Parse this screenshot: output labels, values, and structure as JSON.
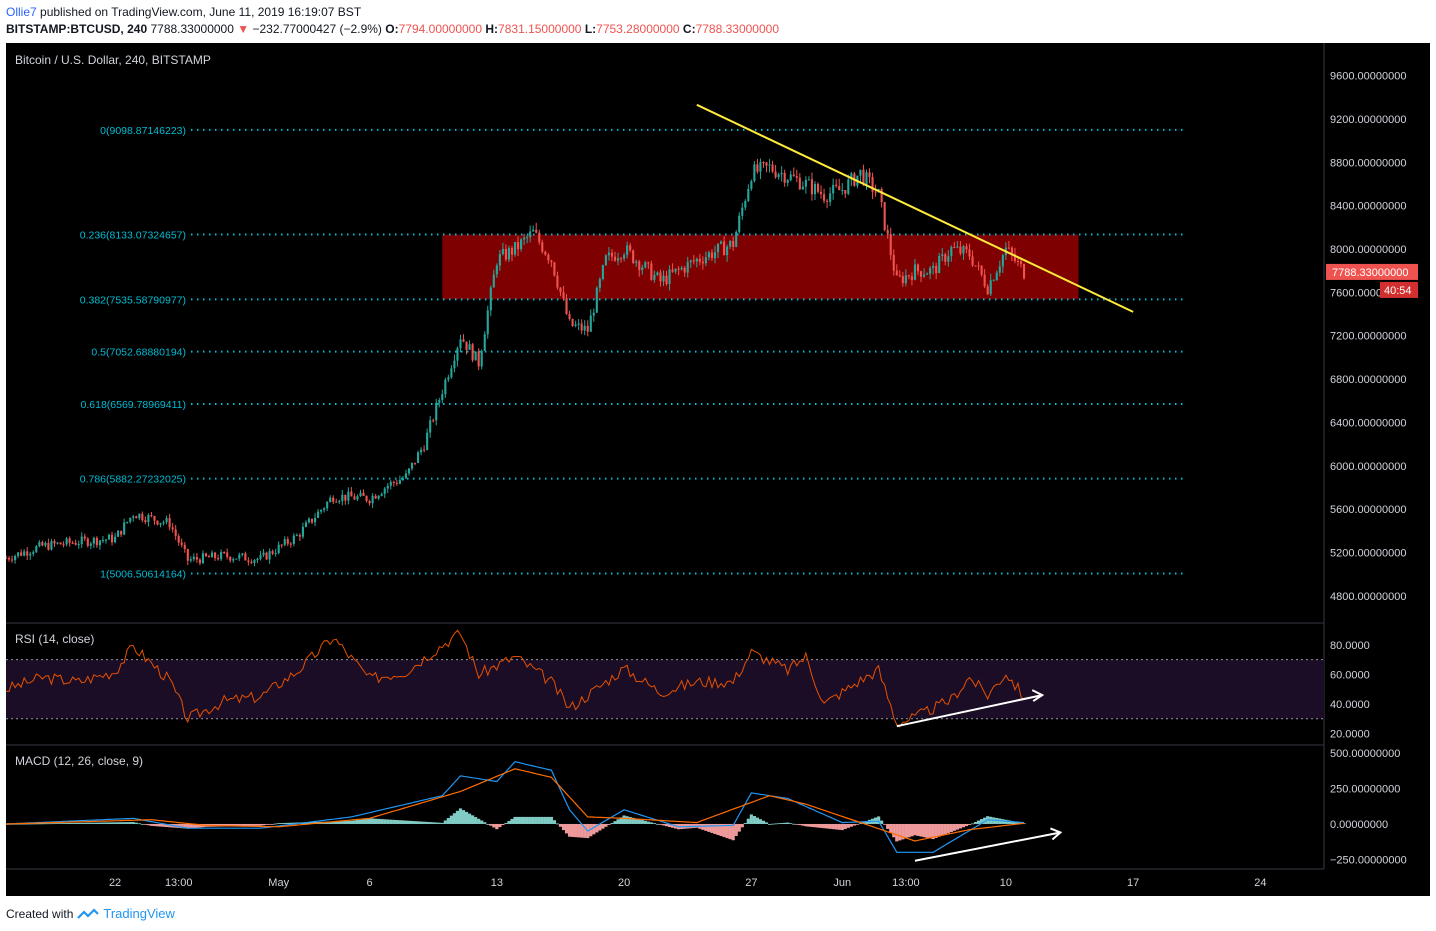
{
  "header": {
    "user": "Ollie7",
    "published": "published on TradingView.com, June 11, 2019 16:19:07 BST",
    "symbol": "BITSTAMP:BTCUSD, 240",
    "last": "7788.33000000",
    "change": "−232.77000427 (−2.9%)",
    "o_label": "O:",
    "o": "7794.00000000",
    "h_label": "H:",
    "h": "7831.15000000",
    "l_label": "L:",
    "l": "7753.28000000",
    "c_label": "C:",
    "c": "7788.33000000"
  },
  "footer": {
    "created": "Created with",
    "brand": "TradingView"
  },
  "colors": {
    "background": "#000000",
    "up": "#26a69a",
    "down": "#ef5350",
    "fib": "#00bcd4",
    "zone": "#7f0000",
    "trendline": "#ffeb3b",
    "rsi": "#e65100",
    "macd": "#2196f3",
    "signal": "#ff6d00",
    "text": "#d1d4dc"
  },
  "chart_data": [
    {
      "type": "candlestick",
      "title": "Bitcoin / U.S. Dollar, 240, BITSTAMP",
      "ylim": [
        4550,
        9900
      ],
      "yticks": [
        "9600.00000000",
        "9200.00000000",
        "8800.00000000",
        "8400.00000000",
        "8000.00000000",
        "7600.00000000",
        "7200.00000000",
        "6800.00000000",
        "6400.00000000",
        "6000.00000000",
        "5600.00000000",
        "5200.00000000",
        "4800.00000000"
      ],
      "xticks": [
        "22",
        "13:00",
        "May",
        "6",
        "13",
        "20",
        "27",
        "Jun",
        "13:00",
        "10",
        "17",
        "24"
      ],
      "last_price_label": "7788.33000000",
      "countdown": "40:54",
      "fib_levels": [
        {
          "label": "0(9098.87146223)",
          "value": 9098.87
        },
        {
          "label": "0.236(8133.07324657)",
          "value": 8133.07
        },
        {
          "label": "0.382(7535.58790977)",
          "value": 7535.59
        },
        {
          "label": "0.5(7052.68880194)",
          "value": 7052.69
        },
        {
          "label": "0.618(6569.78969411)",
          "value": 6569.79
        },
        {
          "label": "0.786(5882.27232025)",
          "value": 5882.27
        },
        {
          "label": "1(5006.50614164)",
          "value": 5006.51
        }
      ],
      "zone": {
        "from_date": "2019-05-10",
        "to_date": "2019-06-14",
        "low": 7535.59,
        "high": 8133.07
      },
      "trendline": [
        {
          "date": "2019-05-24",
          "value": 9330
        },
        {
          "date": "2019-06-17",
          "value": 7420
        }
      ],
      "close_path": [
        {
          "date": "2019-04-16",
          "value": 5150
        },
        {
          "date": "2019-04-18",
          "value": 5260
        },
        {
          "date": "2019-04-20",
          "value": 5300
        },
        {
          "date": "2019-04-22",
          "value": 5330
        },
        {
          "date": "2019-04-23",
          "value": 5560
        },
        {
          "date": "2019-04-25",
          "value": 5470
        },
        {
          "date": "2019-04-26",
          "value": 5130
        },
        {
          "date": "2019-04-28",
          "value": 5170
        },
        {
          "date": "2019-04-30",
          "value": 5140
        },
        {
          "date": "2019-05-02",
          "value": 5350
        },
        {
          "date": "2019-05-04",
          "value": 5720
        },
        {
          "date": "2019-05-06",
          "value": 5700
        },
        {
          "date": "2019-05-07",
          "value": 5820
        },
        {
          "date": "2019-05-08",
          "value": 5900
        },
        {
          "date": "2019-05-09",
          "value": 6200
        },
        {
          "date": "2019-05-10",
          "value": 6700
        },
        {
          "date": "2019-05-11",
          "value": 7200
        },
        {
          "date": "2019-05-12",
          "value": 6950
        },
        {
          "date": "2019-05-13",
          "value": 7900
        },
        {
          "date": "2019-05-14",
          "value": 8000
        },
        {
          "date": "2019-05-15",
          "value": 8150
        },
        {
          "date": "2019-05-16",
          "value": 7900
        },
        {
          "date": "2019-05-17",
          "value": 7300
        },
        {
          "date": "2019-05-18",
          "value": 7250
        },
        {
          "date": "2019-05-19",
          "value": 7900
        },
        {
          "date": "2019-05-20",
          "value": 8000
        },
        {
          "date": "2019-05-22",
          "value": 7700
        },
        {
          "date": "2019-05-24",
          "value": 7900
        },
        {
          "date": "2019-05-26",
          "value": 8050
        },
        {
          "date": "2019-05-27",
          "value": 8700
        },
        {
          "date": "2019-05-28",
          "value": 8750
        },
        {
          "date": "2019-05-30",
          "value": 8600
        },
        {
          "date": "2019-05-31",
          "value": 8500
        },
        {
          "date": "2019-06-01",
          "value": 8550
        },
        {
          "date": "2019-06-02",
          "value": 8700
        },
        {
          "date": "2019-06-03",
          "value": 8500
        },
        {
          "date": "2019-06-04",
          "value": 7700
        },
        {
          "date": "2019-06-05",
          "value": 7800
        },
        {
          "date": "2019-06-06",
          "value": 7800
        },
        {
          "date": "2019-06-07",
          "value": 8000
        },
        {
          "date": "2019-06-08",
          "value": 7950
        },
        {
          "date": "2019-06-09",
          "value": 7650
        },
        {
          "date": "2019-06-10",
          "value": 8000
        },
        {
          "date": "2019-06-11",
          "value": 7788
        }
      ]
    },
    {
      "type": "line",
      "title": "RSI (14, close)",
      "ylim": [
        15,
        92
      ],
      "yticks": [
        "80.0000",
        "60.0000",
        "40.0000",
        "20.0000"
      ],
      "bands": [
        70,
        30
      ],
      "series_path": [
        {
          "date": "2019-04-16",
          "value": 50
        },
        {
          "date": "2019-04-18",
          "value": 58
        },
        {
          "date": "2019-04-20",
          "value": 55
        },
        {
          "date": "2019-04-22",
          "value": 62
        },
        {
          "date": "2019-04-23",
          "value": 79
        },
        {
          "date": "2019-04-25",
          "value": 56
        },
        {
          "date": "2019-04-26",
          "value": 30
        },
        {
          "date": "2019-04-28",
          "value": 42
        },
        {
          "date": "2019-04-30",
          "value": 45
        },
        {
          "date": "2019-05-02",
          "value": 62
        },
        {
          "date": "2019-05-04",
          "value": 85
        },
        {
          "date": "2019-05-06",
          "value": 57
        },
        {
          "date": "2019-05-08",
          "value": 62
        },
        {
          "date": "2019-05-10",
          "value": 80
        },
        {
          "date": "2019-05-11",
          "value": 88
        },
        {
          "date": "2019-05-12",
          "value": 60
        },
        {
          "date": "2019-05-14",
          "value": 72
        },
        {
          "date": "2019-05-16",
          "value": 55
        },
        {
          "date": "2019-05-17",
          "value": 37
        },
        {
          "date": "2019-05-19",
          "value": 55
        },
        {
          "date": "2019-05-20",
          "value": 64
        },
        {
          "date": "2019-05-22",
          "value": 48
        },
        {
          "date": "2019-05-24",
          "value": 55
        },
        {
          "date": "2019-05-26",
          "value": 55
        },
        {
          "date": "2019-05-27",
          "value": 75
        },
        {
          "date": "2019-05-29",
          "value": 63
        },
        {
          "date": "2019-05-30",
          "value": 72
        },
        {
          "date": "2019-05-31",
          "value": 40
        },
        {
          "date": "2019-06-02",
          "value": 56
        },
        {
          "date": "2019-06-03",
          "value": 63
        },
        {
          "date": "2019-06-04",
          "value": 27
        },
        {
          "date": "2019-06-05",
          "value": 31
        },
        {
          "date": "2019-06-07",
          "value": 43
        },
        {
          "date": "2019-06-08",
          "value": 58
        },
        {
          "date": "2019-06-09",
          "value": 46
        },
        {
          "date": "2019-06-10",
          "value": 61
        },
        {
          "date": "2019-06-11",
          "value": 45
        }
      ],
      "divergence_arrow": [
        {
          "date": "2019-06-04",
          "value": 25
        },
        {
          "date": "2019-06-12",
          "value": 46
        }
      ]
    },
    {
      "type": "line",
      "title": "MACD (12, 26, close, 9)",
      "ylim": [
        -290,
        530
      ],
      "yticks": [
        "500.00000000",
        "250.00000000",
        "0.00000000",
        "−250.00000000"
      ],
      "macd_path": [
        {
          "date": "2019-04-16",
          "value": 0
        },
        {
          "date": "2019-04-23",
          "value": 40
        },
        {
          "date": "2019-04-26",
          "value": -30
        },
        {
          "date": "2019-04-30",
          "value": -30
        },
        {
          "date": "2019-05-05",
          "value": 50
        },
        {
          "date": "2019-05-10",
          "value": 200
        },
        {
          "date": "2019-05-11",
          "value": 340
        },
        {
          "date": "2019-05-13",
          "value": 300
        },
        {
          "date": "2019-05-14",
          "value": 440
        },
        {
          "date": "2019-05-16",
          "value": 380
        },
        {
          "date": "2019-05-17",
          "value": 100
        },
        {
          "date": "2019-05-18",
          "value": -50
        },
        {
          "date": "2019-05-20",
          "value": 100
        },
        {
          "date": "2019-05-23",
          "value": -20
        },
        {
          "date": "2019-05-26",
          "value": -10
        },
        {
          "date": "2019-05-27",
          "value": 220
        },
        {
          "date": "2019-05-29",
          "value": 180
        },
        {
          "date": "2019-06-01",
          "value": 10
        },
        {
          "date": "2019-06-03",
          "value": 20
        },
        {
          "date": "2019-06-04",
          "value": -200
        },
        {
          "date": "2019-06-06",
          "value": -200
        },
        {
          "date": "2019-06-09",
          "value": 30
        },
        {
          "date": "2019-06-11",
          "value": 10
        }
      ],
      "signal_path": [
        {
          "date": "2019-04-16",
          "value": 0
        },
        {
          "date": "2019-04-24",
          "value": 30
        },
        {
          "date": "2019-04-27",
          "value": -10
        },
        {
          "date": "2019-05-01",
          "value": -20
        },
        {
          "date": "2019-05-06",
          "value": 40
        },
        {
          "date": "2019-05-11",
          "value": 230
        },
        {
          "date": "2019-05-14",
          "value": 390
        },
        {
          "date": "2019-05-16",
          "value": 330
        },
        {
          "date": "2019-05-18",
          "value": 50
        },
        {
          "date": "2019-05-20",
          "value": 40
        },
        {
          "date": "2019-05-24",
          "value": 10
        },
        {
          "date": "2019-05-28",
          "value": 200
        },
        {
          "date": "2019-05-30",
          "value": 140
        },
        {
          "date": "2019-06-02",
          "value": 10
        },
        {
          "date": "2019-06-05",
          "value": -120
        },
        {
          "date": "2019-06-08",
          "value": -40
        },
        {
          "date": "2019-06-11",
          "value": 5
        }
      ],
      "divergence_arrow": [
        {
          "date": "2019-06-05",
          "value": -260
        },
        {
          "date": "2019-06-13",
          "value": -60
        }
      ]
    }
  ]
}
